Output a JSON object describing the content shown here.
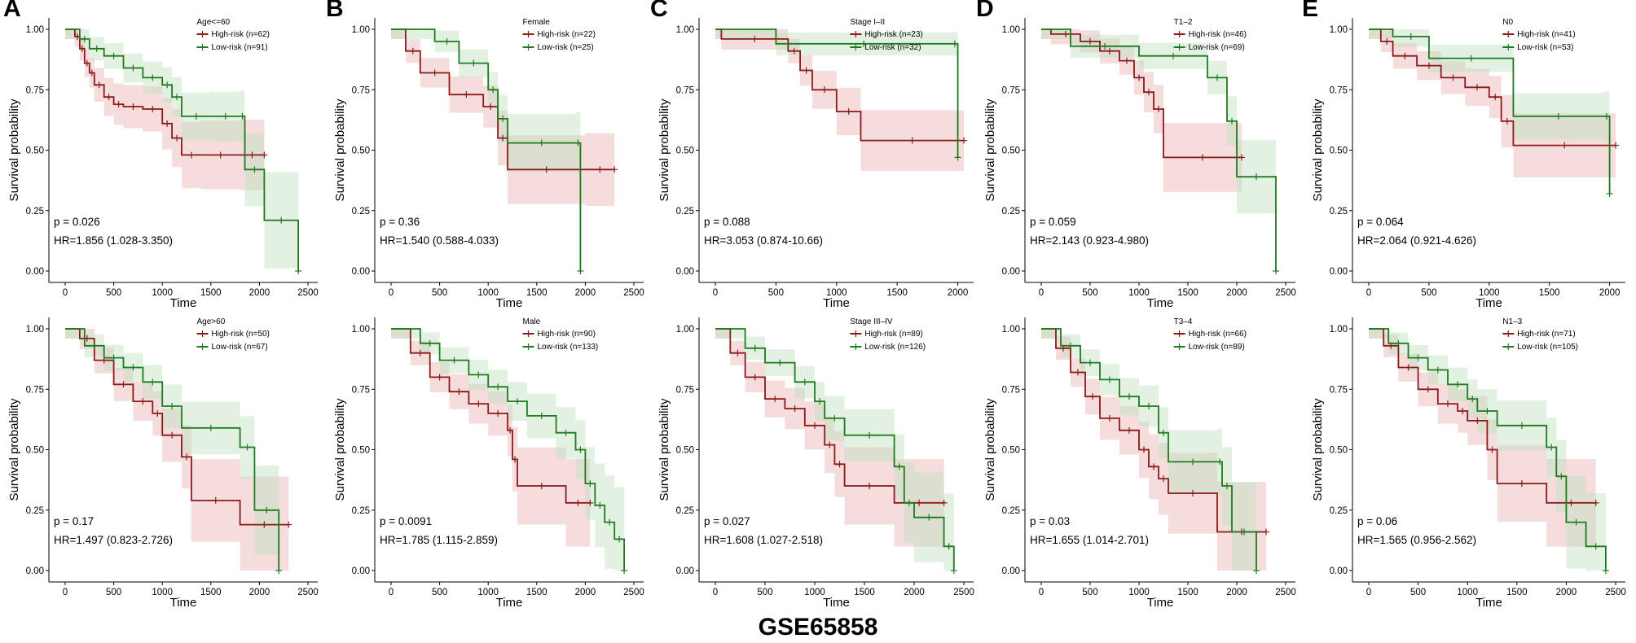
{
  "figure_title": "GSE65858",
  "colors": {
    "high": "#8b1a1a",
    "low": "#1e7a1e",
    "high_band": "#e8b4b4",
    "low_band": "#bfe0bf"
  },
  "chart_data": [
    {
      "type": "line",
      "letter": "A",
      "legend_title": "Age<=60",
      "xlabel": "Time",
      "ylabel": "Survival probability",
      "xticks": [
        0,
        500,
        1000,
        1500,
        2000,
        2500
      ],
      "xlim": [
        0,
        2500
      ],
      "yticks": [
        "0.00",
        "0.25",
        "0.50",
        "0.75",
        "1.00"
      ],
      "ylim": [
        0,
        1
      ],
      "p_text": "p = 0.026",
      "hr_text": "HR=1.856 (1.028-3.350)",
      "series": [
        {
          "name": "High-risk (n=62)",
          "group": "high",
          "x": [
            0,
            100,
            150,
            200,
            250,
            300,
            400,
            500,
            600,
            800,
            1000,
            1100,
            1200,
            1400,
            1800,
            2050
          ],
          "y": [
            1,
            0.97,
            0.92,
            0.86,
            0.82,
            0.77,
            0.72,
            0.69,
            0.68,
            0.67,
            0.61,
            0.55,
            0.48,
            0.48,
            0.48,
            0.48
          ]
        },
        {
          "name": "Low-risk (n=91)",
          "group": "low",
          "x": [
            0,
            150,
            250,
            400,
            600,
            800,
            1000,
            1100,
            1200,
            1500,
            1800,
            1850,
            2050,
            2400
          ],
          "y": [
            1,
            0.96,
            0.92,
            0.89,
            0.84,
            0.8,
            0.77,
            0.72,
            0.64,
            0.64,
            0.64,
            0.42,
            0.21,
            0.0
          ]
        }
      ]
    },
    {
      "type": "line",
      "letter": "B",
      "legend_title": "Female",
      "xlabel": "Time",
      "ylabel": "Survival probability",
      "xticks": [
        0,
        500,
        1000,
        1500,
        2000,
        2500
      ],
      "xlim": [
        0,
        2500
      ],
      "yticks": [
        "0.00",
        "0.25",
        "0.50",
        "0.75",
        "1.00"
      ],
      "ylim": [
        0,
        1
      ],
      "p_text": "p = 0.36",
      "hr_text": "HR=1.540 (0.588-4.033)",
      "series": [
        {
          "name": "High-risk (n=22)",
          "group": "high",
          "x": [
            0,
            150,
            300,
            600,
            950,
            1100,
            1200,
            2000,
            2300
          ],
          "y": [
            1,
            0.91,
            0.82,
            0.73,
            0.68,
            0.55,
            0.42,
            0.42,
            0.42
          ]
        },
        {
          "name": "Low-risk (n=25)",
          "group": "low",
          "x": [
            0,
            450,
            700,
            1000,
            1100,
            1200,
            1900,
            1950
          ],
          "y": [
            1,
            0.95,
            0.86,
            0.75,
            0.63,
            0.53,
            0.53,
            0.0
          ]
        }
      ]
    },
    {
      "type": "line",
      "letter": "C",
      "legend_title": "Stage I–II",
      "xlabel": "Time",
      "ylabel": "Survival probability",
      "xticks": [
        0,
        500,
        1000,
        1500,
        2000
      ],
      "xlim": [
        0,
        2050
      ],
      "yticks": [
        "0.00",
        "0.25",
        "0.50",
        "0.75",
        "1.00"
      ],
      "ylim": [
        0,
        1
      ],
      "p_text": "p = 0.088",
      "hr_text": "HR=3.053 (0.874-10.66)",
      "series": [
        {
          "name": "High-risk (n=23)",
          "group": "high",
          "x": [
            0,
            50,
            600,
            700,
            800,
            1000,
            1200,
            2050
          ],
          "y": [
            1,
            0.96,
            0.91,
            0.83,
            0.75,
            0.66,
            0.54,
            0.54
          ]
        },
        {
          "name": "Low-risk (n=32)",
          "group": "low",
          "x": [
            0,
            500,
            1950,
            2000
          ],
          "y": [
            1,
            0.94,
            0.94,
            0.47
          ]
        }
      ]
    },
    {
      "type": "line",
      "letter": "D",
      "legend_title": "T1–2",
      "xlabel": "Time",
      "ylabel": "Survival probability",
      "xticks": [
        0,
        500,
        1000,
        1500,
        2000,
        2500
      ],
      "xlim": [
        0,
        2500
      ],
      "yticks": [
        "0.00",
        "0.25",
        "0.50",
        "0.75",
        "1.00"
      ],
      "ylim": [
        0,
        1
      ],
      "p_text": "p = 0.059",
      "hr_text": "HR=2.143 (0.923-4.980)",
      "series": [
        {
          "name": "High-risk (n=46)",
          "group": "high",
          "x": [
            0,
            100,
            400,
            600,
            800,
            950,
            1050,
            1150,
            1250,
            2050
          ],
          "y": [
            1,
            0.98,
            0.95,
            0.91,
            0.87,
            0.8,
            0.74,
            0.67,
            0.47,
            0.47
          ]
        },
        {
          "name": "Low-risk (n=69)",
          "group": "low",
          "x": [
            0,
            300,
            1000,
            1700,
            1900,
            2000,
            2400
          ],
          "y": [
            1,
            0.93,
            0.89,
            0.8,
            0.62,
            0.39,
            0.0
          ]
        }
      ]
    },
    {
      "type": "line",
      "letter": "E",
      "legend_title": "N0",
      "xlabel": "Time",
      "ylabel": "Survival probability",
      "xticks": [
        0,
        500,
        1000,
        1500,
        2000
      ],
      "xlim": [
        0,
        2050
      ],
      "yticks": [
        "0.00",
        "0.25",
        "0.50",
        "0.75",
        "1.00"
      ],
      "ylim": [
        0,
        1
      ],
      "p_text": "p = 0.064",
      "hr_text": "HR=2.064 (0.921-4.626)",
      "series": [
        {
          "name": "High-risk (n=41)",
          "group": "high",
          "x": [
            0,
            100,
            200,
            400,
            600,
            800,
            1000,
            1100,
            1200,
            2050
          ],
          "y": [
            1,
            0.95,
            0.89,
            0.85,
            0.8,
            0.76,
            0.72,
            0.62,
            0.52,
            0.52
          ]
        },
        {
          "name": "Low-risk (n=53)",
          "group": "low",
          "x": [
            0,
            200,
            500,
            1200,
            1950,
            2000
          ],
          "y": [
            1,
            0.97,
            0.88,
            0.64,
            0.64,
            0.32
          ]
        }
      ]
    },
    {
      "type": "line",
      "letter": "",
      "legend_title": "Age>60",
      "xlabel": "Time",
      "ylabel": "Survival probability",
      "xticks": [
        0,
        500,
        1000,
        1500,
        2000,
        2500
      ],
      "xlim": [
        0,
        2500
      ],
      "yticks": [
        "0.00",
        "0.25",
        "0.50",
        "0.75",
        "1.00"
      ],
      "ylim": [
        0,
        1
      ],
      "p_text": "p = 0.17",
      "hr_text": "HR=1.497 (0.823-2.726)",
      "series": [
        {
          "name": "High-risk (n=50)",
          "group": "high",
          "x": [
            0,
            150,
            300,
            500,
            700,
            900,
            1000,
            1200,
            1300,
            1800,
            2300
          ],
          "y": [
            1,
            0.96,
            0.87,
            0.77,
            0.7,
            0.65,
            0.56,
            0.47,
            0.29,
            0.19,
            0.19
          ]
        },
        {
          "name": "Low-risk (n=67)",
          "group": "low",
          "x": [
            0,
            200,
            400,
            600,
            800,
            1000,
            1200,
            1800,
            1950,
            2200
          ],
          "y": [
            1,
            0.93,
            0.88,
            0.84,
            0.78,
            0.68,
            0.59,
            0.51,
            0.25,
            0.0
          ]
        }
      ]
    },
    {
      "type": "line",
      "letter": "",
      "legend_title": "Male",
      "xlabel": "Time",
      "ylabel": "Survival probability",
      "xticks": [
        0,
        500,
        1000,
        1500,
        2000,
        2500
      ],
      "xlim": [
        0,
        2500
      ],
      "yticks": [
        "0.00",
        "0.25",
        "0.50",
        "0.75",
        "1.00"
      ],
      "ylim": [
        0,
        1
      ],
      "p_text": "p = 0.0091",
      "hr_text": "HR=1.785 (1.115-2.859)",
      "series": [
        {
          "name": "High-risk (n=90)",
          "group": "high",
          "x": [
            0,
            200,
            400,
            600,
            800,
            1000,
            1200,
            1250,
            1300,
            1800,
            2050
          ],
          "y": [
            1,
            0.9,
            0.8,
            0.74,
            0.69,
            0.65,
            0.58,
            0.46,
            0.35,
            0.28,
            0.28
          ]
        },
        {
          "name": "Low-risk (n=133)",
          "group": "low",
          "x": [
            0,
            300,
            500,
            800,
            1000,
            1200,
            1400,
            1700,
            1900,
            2000,
            2100,
            2200,
            2300,
            2400
          ],
          "y": [
            1,
            0.94,
            0.87,
            0.81,
            0.76,
            0.7,
            0.64,
            0.57,
            0.5,
            0.36,
            0.27,
            0.2,
            0.13,
            0.0
          ]
        }
      ]
    },
    {
      "type": "line",
      "letter": "",
      "legend_title": "Stage III–IV",
      "xlabel": "Time",
      "ylabel": "Survival probability",
      "xticks": [
        0,
        500,
        1000,
        1500,
        2000,
        2500
      ],
      "xlim": [
        0,
        2500
      ],
      "yticks": [
        "0.00",
        "0.25",
        "0.50",
        "0.75",
        "1.00"
      ],
      "ylim": [
        0,
        1
      ],
      "p_text": "p = 0.027",
      "hr_text": "HR=1.608 (1.027-2.518)",
      "series": [
        {
          "name": "High-risk (n=89)",
          "group": "high",
          "x": [
            0,
            150,
            300,
            500,
            700,
            900,
            1100,
            1200,
            1300,
            1800,
            2300
          ],
          "y": [
            1,
            0.9,
            0.8,
            0.71,
            0.67,
            0.6,
            0.52,
            0.44,
            0.35,
            0.28,
            0.28
          ]
        },
        {
          "name": "Low-risk (n=126)",
          "group": "low",
          "x": [
            0,
            300,
            500,
            800,
            1000,
            1100,
            1300,
            1800,
            1900,
            2000,
            2300,
            2400
          ],
          "y": [
            1,
            0.92,
            0.86,
            0.78,
            0.7,
            0.63,
            0.56,
            0.43,
            0.28,
            0.22,
            0.1,
            0.0
          ]
        }
      ]
    },
    {
      "type": "line",
      "letter": "",
      "legend_title": "T3–4",
      "xlabel": "Time",
      "ylabel": "Survival probability",
      "xticks": [
        0,
        500,
        1000,
        1500,
        2000,
        2500
      ],
      "xlim": [
        0,
        2500
      ],
      "yticks": [
        "0.00",
        "0.25",
        "0.50",
        "0.75",
        "1.00"
      ],
      "ylim": [
        0,
        1
      ],
      "p_text": "p = 0.03",
      "hr_text": "HR=1.655 (1.014-2.701)",
      "series": [
        {
          "name": "High-risk (n=66)",
          "group": "high",
          "x": [
            0,
            150,
            300,
            450,
            600,
            800,
            1000,
            1100,
            1200,
            1300,
            1800,
            2300
          ],
          "y": [
            1,
            0.92,
            0.82,
            0.72,
            0.63,
            0.58,
            0.5,
            0.43,
            0.38,
            0.32,
            0.16,
            0.16
          ]
        },
        {
          "name": "Low-risk (n=89)",
          "group": "low",
          "x": [
            0,
            200,
            400,
            600,
            800,
            1000,
            1200,
            1300,
            1800,
            1850,
            1950,
            2200
          ],
          "y": [
            1,
            0.93,
            0.86,
            0.79,
            0.72,
            0.68,
            0.57,
            0.45,
            0.45,
            0.35,
            0.16,
            0.0
          ]
        }
      ]
    },
    {
      "type": "line",
      "letter": "",
      "legend_title": "N1–3",
      "xlabel": "Time",
      "ylabel": "Survival probability",
      "xticks": [
        0,
        500,
        1000,
        1500,
        2000,
        2500
      ],
      "xlim": [
        0,
        2500
      ],
      "yticks": [
        "0.00",
        "0.25",
        "0.50",
        "0.75",
        "1.00"
      ],
      "ylim": [
        0,
        1
      ],
      "p_text": "p = 0.06",
      "hr_text": "HR=1.565 (0.956-2.562)",
      "series": [
        {
          "name": "High-risk (n=71)",
          "group": "high",
          "x": [
            0,
            150,
            300,
            500,
            700,
            900,
            1000,
            1200,
            1300,
            1800,
            2300
          ],
          "y": [
            1,
            0.93,
            0.84,
            0.75,
            0.69,
            0.66,
            0.62,
            0.5,
            0.36,
            0.28,
            0.28
          ]
        },
        {
          "name": "Low-risk (n=105)",
          "group": "low",
          "x": [
            0,
            200,
            400,
            600,
            800,
            1000,
            1100,
            1300,
            1800,
            1900,
            2000,
            2200,
            2400
          ],
          "y": [
            1,
            0.94,
            0.88,
            0.83,
            0.77,
            0.71,
            0.66,
            0.6,
            0.51,
            0.39,
            0.2,
            0.1,
            0.0
          ]
        }
      ]
    }
  ]
}
